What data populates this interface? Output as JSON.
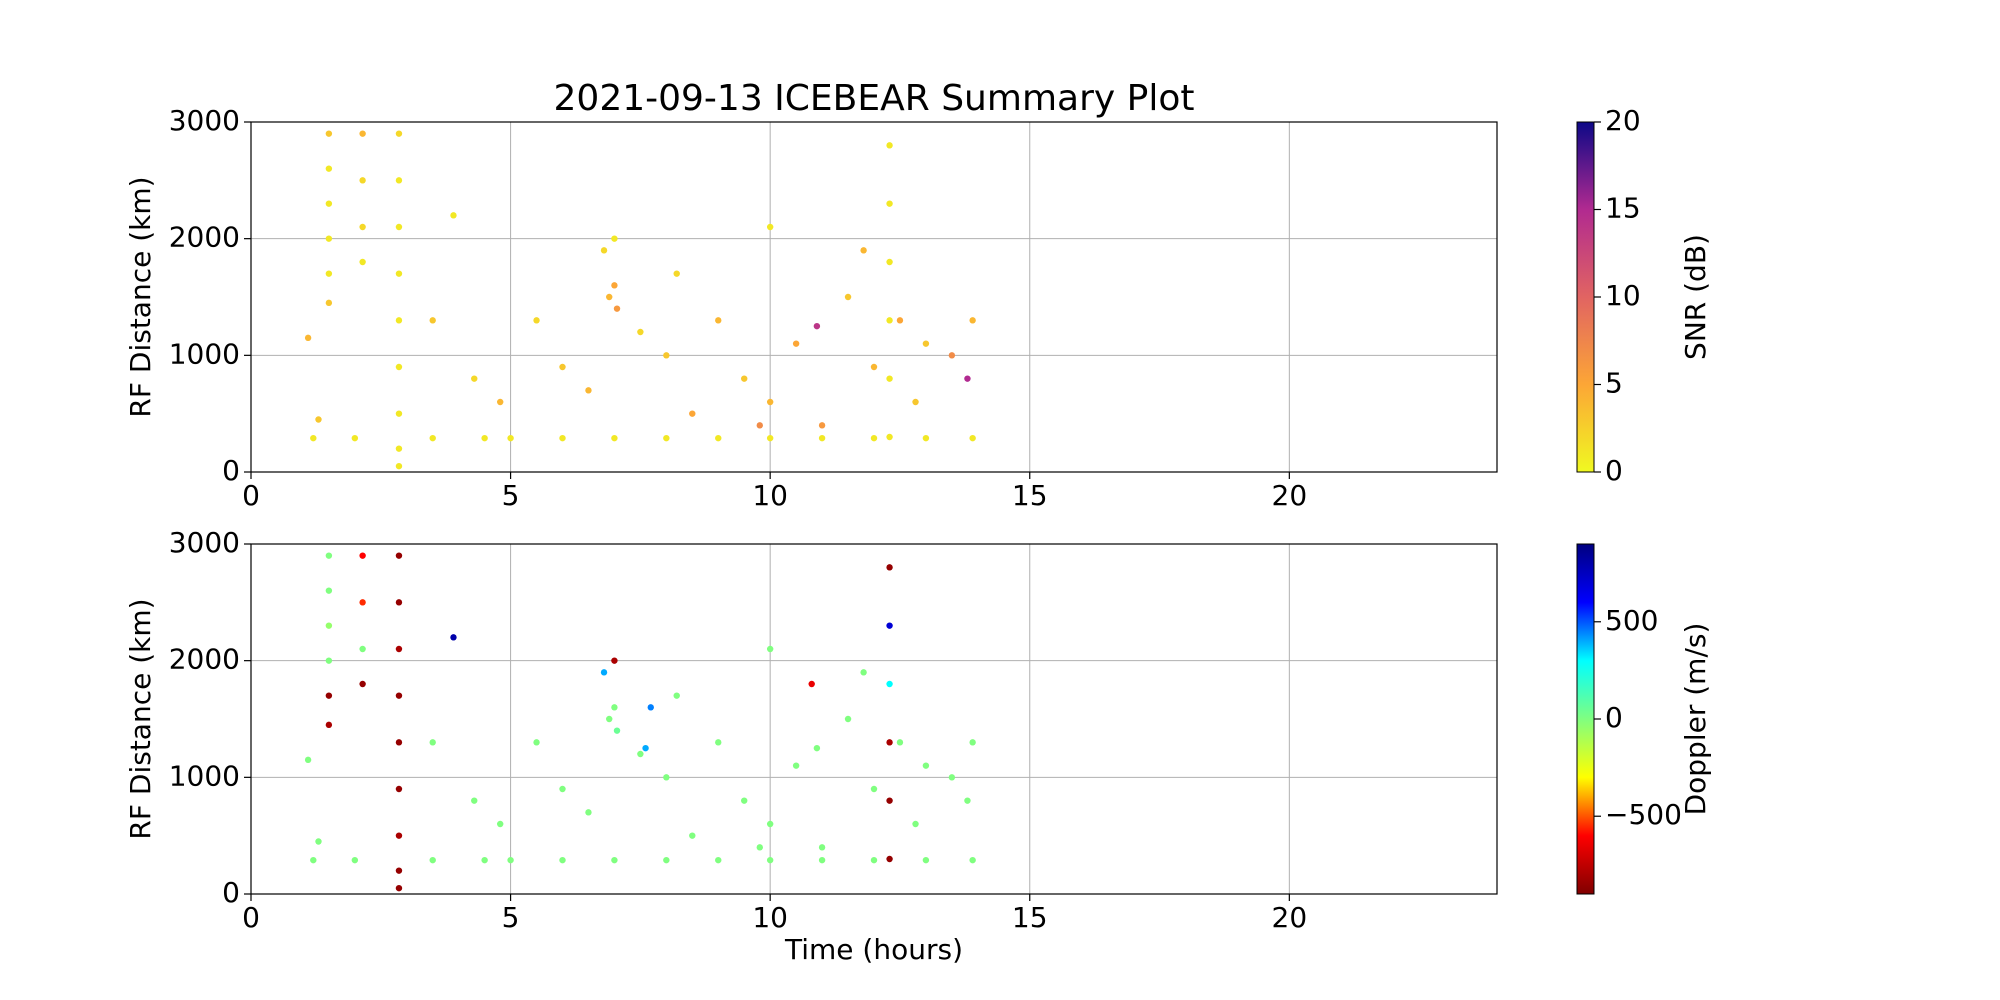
{
  "chart_data": [
    {
      "type": "scatter",
      "title": "2021-09-13 ICEBEAR Summary Plot",
      "ylabel": "RF Distance (km)",
      "xlim": [
        0,
        24
      ],
      "xticks": [
        0,
        5,
        10,
        15,
        20
      ],
      "ylim": [
        0,
        3000
      ],
      "yticks": [
        0,
        1000,
        2000,
        3000
      ],
      "grid": true,
      "x": [
        1.5,
        1.5,
        1.5,
        1.5,
        1.5,
        1.5,
        2.15,
        2.15,
        2.15,
        2.15,
        2.85,
        2.85,
        2.85,
        2.85,
        2.85,
        2.85,
        2.85,
        2.85,
        2.85,
        12.3,
        12.3,
        12.3,
        12.3,
        12.3,
        12.3,
        1.2,
        2,
        3.5,
        4.5,
        5,
        6,
        7,
        8,
        9,
        10,
        11,
        12,
        13,
        13.9,
        6.8,
        6.9,
        7.0,
        7.05,
        7.0,
        1.1,
        1.3,
        3.9,
        3.5,
        4.3,
        4.8,
        5.5,
        6,
        6.5,
        7.5,
        8,
        8.5,
        9,
        9.5,
        10,
        10,
        10.5,
        10.9,
        11,
        11.5,
        12,
        12.5,
        13,
        13.5,
        13.8,
        13.9,
        12.8,
        11.8,
        9.8,
        8.2
      ],
      "y": [
        2900,
        2600,
        2300,
        2000,
        1700,
        1450,
        2900,
        2500,
        2100,
        1800,
        2900,
        2500,
        2100,
        1700,
        1300,
        900,
        500,
        200,
        50,
        2800,
        2300,
        1800,
        1300,
        800,
        300,
        290,
        290,
        290,
        290,
        290,
        290,
        290,
        290,
        290,
        290,
        290,
        290,
        290,
        290,
        1900,
        1500,
        1600,
        1400,
        2000,
        1150,
        450,
        2200,
        1300,
        800,
        600,
        1300,
        900,
        700,
        1200,
        1000,
        500,
        1300,
        800,
        2100,
        600,
        1100,
        1250,
        400,
        1500,
        900,
        1300,
        1100,
        1000,
        800,
        1300,
        600,
        1900,
        400,
        1700
      ],
      "c": [
        3,
        1,
        1,
        1,
        1,
        3,
        4,
        2,
        2,
        1,
        2,
        1,
        1,
        1,
        1,
        1,
        1,
        1,
        1,
        1,
        1,
        1,
        1,
        1,
        1,
        1,
        1,
        1,
        1,
        1,
        1,
        1,
        1,
        1,
        1,
        1,
        1,
        1,
        1,
        2,
        4,
        5,
        6,
        1,
        4,
        3,
        1,
        3,
        2,
        4,
        2,
        3,
        4,
        2,
        3,
        5,
        4,
        3,
        1,
        4,
        5,
        14,
        6,
        3,
        4,
        5,
        3,
        7,
        15,
        4,
        3,
        4,
        7,
        2
      ],
      "colorbar": {
        "label": "SNR (dB)",
        "lim": [
          0,
          20
        ],
        "ticks": [
          0,
          5,
          10,
          15,
          20
        ],
        "colormap": [
          "#f0f921",
          "#fca636",
          "#e16462",
          "#b12a90",
          "#0d0887"
        ]
      }
    },
    {
      "type": "scatter",
      "ylabel": "RF Distance (km)",
      "xlabel": "Time (hours)",
      "xlim": [
        0,
        24
      ],
      "xticks": [
        0,
        5,
        10,
        15,
        20
      ],
      "ylim": [
        0,
        3000
      ],
      "yticks": [
        0,
        1000,
        2000,
        3000
      ],
      "grid": true,
      "x": [
        1.5,
        1.5,
        1.5,
        1.5,
        1.5,
        1.5,
        2.15,
        2.15,
        2.15,
        2.15,
        2.85,
        2.85,
        2.85,
        2.85,
        2.85,
        2.85,
        2.85,
        2.85,
        2.85,
        12.3,
        12.3,
        12.3,
        12.3,
        12.3,
        12.3,
        1.2,
        2,
        3.5,
        4.5,
        5,
        6,
        7,
        8,
        9,
        10,
        11,
        12,
        13,
        13.9,
        6.8,
        6.9,
        7.0,
        7.05,
        7.0,
        1.1,
        1.3,
        3.9,
        3.5,
        4.3,
        4.8,
        5.5,
        6,
        6.5,
        7.5,
        8,
        8.5,
        9,
        9.5,
        10,
        10,
        10.5,
        10.9,
        11,
        11.5,
        12,
        12.5,
        13,
        13.5,
        13.8,
        13.9,
        12.8,
        11.8,
        9.8,
        8.2,
        7.7,
        7.6,
        10.8
      ],
      "y": [
        2900,
        2600,
        2300,
        2000,
        1700,
        1450,
        2900,
        2500,
        2100,
        1800,
        2900,
        2500,
        2100,
        1700,
        1300,
        900,
        500,
        200,
        50,
        2800,
        2300,
        1800,
        1300,
        800,
        300,
        290,
        290,
        290,
        290,
        290,
        290,
        290,
        290,
        290,
        290,
        290,
        290,
        290,
        290,
        1900,
        1500,
        1600,
        1400,
        2000,
        1150,
        450,
        2200,
        1300,
        800,
        600,
        1300,
        900,
        700,
        1200,
        1000,
        500,
        1300,
        800,
        2100,
        600,
        1100,
        1250,
        400,
        1500,
        900,
        1300,
        1100,
        1000,
        800,
        1300,
        600,
        1900,
        400,
        1700,
        1600,
        1250,
        1800
      ],
      "c": [
        0,
        0,
        -50,
        0,
        -850,
        -800,
        -600,
        -550,
        0,
        -850,
        -850,
        -850,
        -800,
        -850,
        -850,
        -850,
        -800,
        -850,
        -850,
        -850,
        700,
        300,
        -800,
        -850,
        -850,
        0,
        0,
        0,
        0,
        0,
        0,
        0,
        0,
        0,
        0,
        0,
        0,
        0,
        0,
        400,
        0,
        0,
        50,
        -800,
        0,
        0,
        800,
        0,
        0,
        0,
        0,
        0,
        0,
        0,
        0,
        0,
        0,
        0,
        0,
        0,
        0,
        0,
        0,
        0,
        0,
        0,
        0,
        0,
        0,
        0,
        0,
        0,
        0,
        0,
        450,
        400,
        -650
      ],
      "colorbar": {
        "label": "Doppler (m/s)",
        "lim": [
          -900,
          900
        ],
        "ticks": [
          {
            "value": -500,
            "label": "−500"
          },
          0,
          500
        ],
        "colormap": [
          "#800000",
          "#ff0000",
          "#ffff00",
          "#80ff80",
          "#00ffff",
          "#0000ff",
          "#000080"
        ]
      }
    }
  ]
}
